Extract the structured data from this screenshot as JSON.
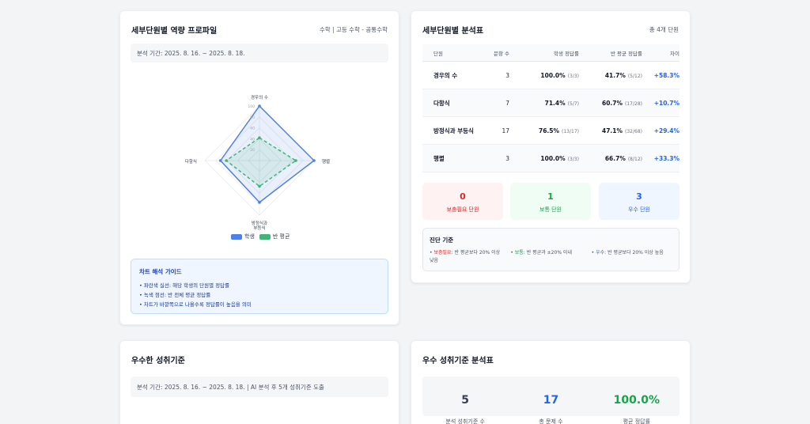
{
  "profile": {
    "title": "세부단원별 역량 프로파일",
    "subject": "수학 | 고등 수학 - 공통수학",
    "period": "분석 기간: 2025. 8. 16. ~ 2025. 8. 18.",
    "axes": [
      "경우의 수",
      "행렬",
      "방정식과 부등식",
      "다항식"
    ],
    "axis_label_lines": [
      [
        "경우의 수"
      ],
      [
        "행렬"
      ],
      [
        "방정식과",
        "부등식"
      ],
      [
        "다항식"
      ]
    ],
    "ticks": [
      "100",
      "80",
      "60",
      "40",
      "20"
    ],
    "legend": {
      "student": "학생",
      "class": "반 평균"
    },
    "colors": {
      "student": "#4f7fe8",
      "class": "#44b37a"
    }
  },
  "chart_data": {
    "type": "radar",
    "categories": [
      "경우의 수",
      "행렬",
      "방정식과 부등식",
      "다항식"
    ],
    "series": [
      {
        "name": "학생",
        "values": [
          100,
          100,
          76.5,
          71.4
        ]
      },
      {
        "name": "반 평균",
        "values": [
          41.7,
          66.7,
          47.1,
          60.7
        ]
      }
    ],
    "range": [
      0,
      100
    ]
  },
  "guide": {
    "title": "차트 해석 가이드",
    "items": [
      "• 파란색 실선: 해당 학생의 단원별 정답률",
      "• 녹색 점선: 반 전체 평균 정답률",
      "• 차트가 바깥쪽으로 나올수록 정답률이 높음을 의미"
    ]
  },
  "analysis": {
    "title": "세부단원별 분석표",
    "count": "총 4개 단원",
    "headers": [
      "단원",
      "문항 수",
      "학생 정답률",
      "반 평균 정답률",
      "차이"
    ],
    "rows": [
      {
        "unit": "경우의 수",
        "count": "3",
        "student": "100.0%",
        "student_sub": "(3/3)",
        "avg": "41.7%",
        "avg_sub": "(5/12)",
        "diff": "+58.3%"
      },
      {
        "unit": "다항식",
        "count": "7",
        "student": "71.4%",
        "student_sub": "(5/7)",
        "avg": "60.7%",
        "avg_sub": "(17/28)",
        "diff": "+10.7%"
      },
      {
        "unit": "방정식과 부등식",
        "count": "17",
        "student": "76.5%",
        "student_sub": "(13/17)",
        "avg": "47.1%",
        "avg_sub": "(32/68)",
        "diff": "+29.4%"
      },
      {
        "unit": "행렬",
        "count": "3",
        "student": "100.0%",
        "student_sub": "(3/3)",
        "avg": "66.7%",
        "avg_sub": "(8/12)",
        "diff": "+33.3%"
      }
    ],
    "stats": [
      {
        "num": "0",
        "label": "보충필요 단원",
        "bg": "#fef2f2",
        "color": "#dc2626"
      },
      {
        "num": "1",
        "label": "보통 단원",
        "bg": "#f0fdf4",
        "color": "#16a34a"
      },
      {
        "num": "3",
        "label": "우수 단원",
        "bg": "#eff6ff",
        "color": "#2563eb"
      }
    ],
    "criteria_title": "진단 기준",
    "criteria": [
      {
        "key": "보충필요",
        "text": ": 반 평균보다 20% 이상 낮음",
        "color": "#dc2626"
      },
      {
        "key": "보통",
        "text": ": 반 평균과 ±20% 이내",
        "color": "#16a34a"
      },
      {
        "key": "우수",
        "text": ": 반 평균보다 20% 이상 높음",
        "color": "#2563eb"
      }
    ]
  },
  "excellent": {
    "title": "우수한 성취기준",
    "period": "분석 기간: 2025. 8. 16. ~ 2025. 8. 18. | AI 분석 후 5개 성취기준 도출"
  },
  "excellent_table": {
    "title": "우수 성취기준 분석표",
    "stats": [
      {
        "num": "5",
        "label": "분석 성취기준 수",
        "color": "#374151"
      },
      {
        "num": "17",
        "label": "총 문제 수",
        "color": "#2563eb"
      },
      {
        "num": "100.0%",
        "label": "평균 정답률",
        "color": "#16a34a"
      }
    ]
  }
}
